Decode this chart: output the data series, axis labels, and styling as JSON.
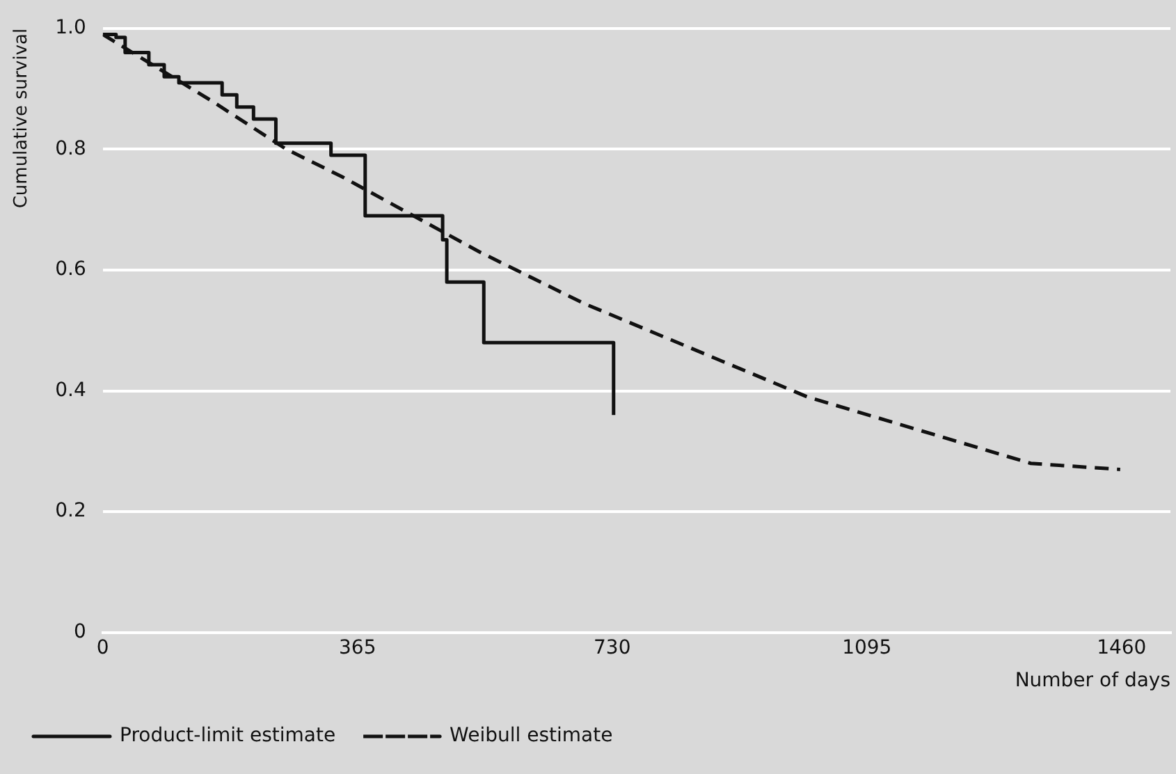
{
  "chart_data": {
    "type": "line",
    "xlabel": "Number of days",
    "ylabel": "Cumulative survival",
    "xlim": [
      0,
      1530
    ],
    "xticks": [
      0,
      365,
      730,
      1095,
      1460
    ],
    "ylim": [
      0,
      1.0
    ],
    "yticks": [
      {
        "value": 0,
        "label": "0"
      },
      0.2,
      0.4,
      0.6,
      0.8,
      {
        "value": 1.0,
        "label": "1.0"
      }
    ],
    "grid": "y",
    "legend": "bottom",
    "marker": "none",
    "series": [
      {
        "name": "Product-limit estimate",
        "type": "step",
        "color": "#111111",
        "line_style": "solid",
        "x": [
          0,
          19,
          32,
          66,
          88,
          109,
          171,
          192,
          216,
          248,
          327,
          376,
          386,
          487,
          493,
          546,
          732
        ],
        "values": [
          0.99,
          0.985,
          0.96,
          0.94,
          0.92,
          0.91,
          0.89,
          0.87,
          0.85,
          0.81,
          0.79,
          0.69,
          0.69,
          0.65,
          0.58,
          0.48,
          0.36
        ]
      },
      {
        "name": "Weibull estimate",
        "type": "line",
        "color": "#111111",
        "line_style": "dashed",
        "x": [
          0,
          156,
          263,
          342,
          540,
          689,
          1010,
          1330,
          1458
        ],
        "values": [
          0.99,
          0.88,
          0.8,
          0.755,
          0.63,
          0.545,
          0.39,
          0.28,
          0.27
        ]
      }
    ]
  }
}
